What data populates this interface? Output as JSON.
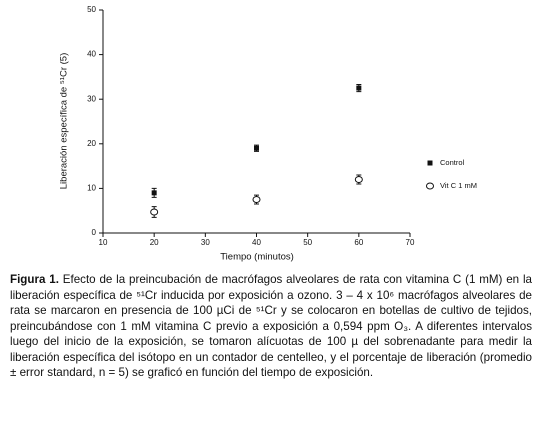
{
  "chart_data": {
    "type": "scatter",
    "x_label": "Tiempo (minutos)",
    "y_label": "Liberación específica de ⁵¹Cr (5)",
    "x": [
      20,
      40,
      60
    ],
    "series": [
      {
        "name": "Control",
        "color": "#111111",
        "marker": "filled-square",
        "values": [
          9,
          19,
          32.5
        ],
        "errors": [
          1,
          0.7,
          0.8
        ]
      },
      {
        "name": "Vit C 1 mM",
        "color": "#111111",
        "marker": "open-circle",
        "values": [
          4.7,
          7.5,
          12
        ],
        "errors": [
          1.2,
          1,
          1
        ]
      }
    ],
    "xlim": [
      10,
      70
    ],
    "xticks": [
      10,
      20,
      30,
      40,
      50,
      60,
      70
    ],
    "ylim": [
      0,
      50
    ],
    "yticks": [
      0,
      10,
      20,
      30,
      40,
      50
    ],
    "legend": "right",
    "grid": false
  },
  "caption": {
    "label": "Figura 1.",
    "text": "Efecto de la preincubación de macrófagos alveolares de rata con vitamina C (1 mM) en la liberación específica de ⁵¹Cr inducida por exposición a ozono.  3 – 4 x 10⁶ macrófagos alveolares de rata se marcaron en presencia de 100 µCi de ⁵¹Cr y se colocaron en botellas de cultivo de tejidos, preincubándose con 1 mM vitamina C previo a exposición a 0,594 ppm O₃. A diferentes intervalos luego del inicio de la exposición, se tomaron alícuotas de 100 µ del sobrenadante para medir la liberación específica del isótopo en un contador de centelleo, y el porcentaje de liberación (promedio ± error standard, n = 5) se graficó en función del tiempo de exposición."
  }
}
